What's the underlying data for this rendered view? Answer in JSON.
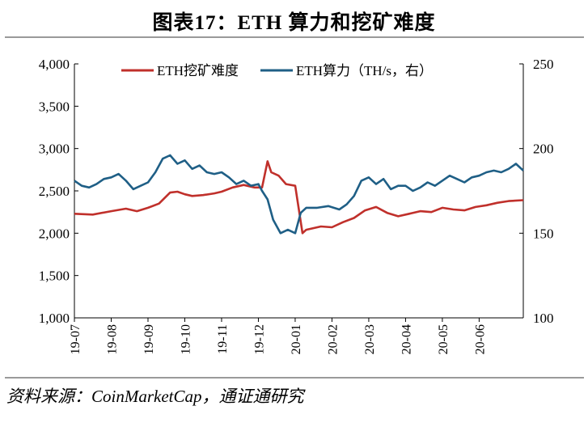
{
  "header": {
    "title": "图表17：ETH 算力和挖矿难度",
    "source": "资料来源：CoinMarketCap，通证通研究"
  },
  "colors": {
    "difficulty": "#c0302b",
    "hashrate": "#1f5f86",
    "axis": "#000000"
  },
  "chart_data": {
    "type": "line",
    "title": "ETH 算力和挖矿难度",
    "legend_position": "top",
    "categories": [
      "19-07",
      "19-08",
      "19-09",
      "19-10",
      "19-11",
      "19-12",
      "20-01",
      "20-02",
      "20-03",
      "20-04",
      "20-05",
      "20-06"
    ],
    "x": [
      0,
      1,
      2,
      3,
      4,
      5,
      6,
      7,
      8,
      9,
      10,
      11
    ],
    "x_range": [
      0,
      12.2
    ],
    "y_left": {
      "min": 1000,
      "max": 4000,
      "ticks": [
        "1,000",
        "1,500",
        "2,000",
        "2,500",
        "3,000",
        "3,500",
        "4,000"
      ],
      "tick_values": [
        1000,
        1500,
        2000,
        2500,
        3000,
        3500,
        4000
      ]
    },
    "y_right": {
      "min": 100,
      "max": 250,
      "ticks": [
        "100",
        "150",
        "200",
        "250"
      ],
      "tick_values": [
        100,
        150,
        200,
        250
      ]
    },
    "series": [
      {
        "name": "ETH挖矿难度",
        "axis": "left",
        "points": [
          [
            0,
            2230
          ],
          [
            0.5,
            2220
          ],
          [
            1,
            2260
          ],
          [
            1.4,
            2290
          ],
          [
            1.7,
            2260
          ],
          [
            2,
            2300
          ],
          [
            2.3,
            2350
          ],
          [
            2.6,
            2480
          ],
          [
            2.8,
            2490
          ],
          [
            3,
            2460
          ],
          [
            3.2,
            2440
          ],
          [
            3.5,
            2450
          ],
          [
            3.8,
            2470
          ],
          [
            4,
            2490
          ],
          [
            4.3,
            2540
          ],
          [
            4.6,
            2570
          ],
          [
            4.9,
            2540
          ],
          [
            5.1,
            2540
          ],
          [
            5.25,
            2850
          ],
          [
            5.35,
            2720
          ],
          [
            5.55,
            2680
          ],
          [
            5.75,
            2580
          ],
          [
            6.0,
            2560
          ],
          [
            6.2,
            2000
          ],
          [
            6.3,
            2040
          ],
          [
            6.7,
            2080
          ],
          [
            7.0,
            2070
          ],
          [
            7.3,
            2130
          ],
          [
            7.6,
            2180
          ],
          [
            7.9,
            2270
          ],
          [
            8.2,
            2310
          ],
          [
            8.5,
            2240
          ],
          [
            8.8,
            2200
          ],
          [
            9.1,
            2230
          ],
          [
            9.4,
            2260
          ],
          [
            9.7,
            2250
          ],
          [
            10,
            2300
          ],
          [
            10.3,
            2280
          ],
          [
            10.6,
            2270
          ],
          [
            10.9,
            2310
          ],
          [
            11.2,
            2330
          ],
          [
            11.5,
            2360
          ],
          [
            11.8,
            2380
          ],
          [
            12.2,
            2390
          ]
        ]
      },
      {
        "name": "ETH算力（TH/s，右）",
        "axis": "right",
        "points": [
          [
            0,
            181
          ],
          [
            0.2,
            178
          ],
          [
            0.4,
            177
          ],
          [
            0.6,
            179
          ],
          [
            0.8,
            182
          ],
          [
            1,
            183
          ],
          [
            1.2,
            185
          ],
          [
            1.4,
            181
          ],
          [
            1.6,
            176
          ],
          [
            1.8,
            178
          ],
          [
            2,
            180
          ],
          [
            2.2,
            186
          ],
          [
            2.4,
            194
          ],
          [
            2.6,
            196
          ],
          [
            2.8,
            191
          ],
          [
            3,
            193
          ],
          [
            3.2,
            188
          ],
          [
            3.4,
            190
          ],
          [
            3.6,
            186
          ],
          [
            3.8,
            185
          ],
          [
            4,
            186
          ],
          [
            4.2,
            183
          ],
          [
            4.4,
            179
          ],
          [
            4.6,
            181
          ],
          [
            4.8,
            178
          ],
          [
            5,
            179
          ],
          [
            5.1,
            175
          ],
          [
            5.25,
            170
          ],
          [
            5.4,
            158
          ],
          [
            5.6,
            150
          ],
          [
            5.8,
            152
          ],
          [
            6.0,
            150
          ],
          [
            6.15,
            162
          ],
          [
            6.3,
            165
          ],
          [
            6.6,
            165
          ],
          [
            6.9,
            166
          ],
          [
            7.2,
            164
          ],
          [
            7.4,
            167
          ],
          [
            7.6,
            172
          ],
          [
            7.8,
            181
          ],
          [
            8.0,
            183
          ],
          [
            8.2,
            179
          ],
          [
            8.4,
            182
          ],
          [
            8.6,
            176
          ],
          [
            8.8,
            178
          ],
          [
            9.0,
            178
          ],
          [
            9.2,
            175
          ],
          [
            9.4,
            177
          ],
          [
            9.6,
            180
          ],
          [
            9.8,
            178
          ],
          [
            10.0,
            181
          ],
          [
            10.2,
            184
          ],
          [
            10.4,
            182
          ],
          [
            10.6,
            180
          ],
          [
            10.8,
            183
          ],
          [
            11.0,
            184
          ],
          [
            11.2,
            186
          ],
          [
            11.4,
            187
          ],
          [
            11.6,
            186
          ],
          [
            11.8,
            188
          ],
          [
            12.0,
            191
          ],
          [
            12.2,
            187
          ]
        ]
      }
    ]
  }
}
